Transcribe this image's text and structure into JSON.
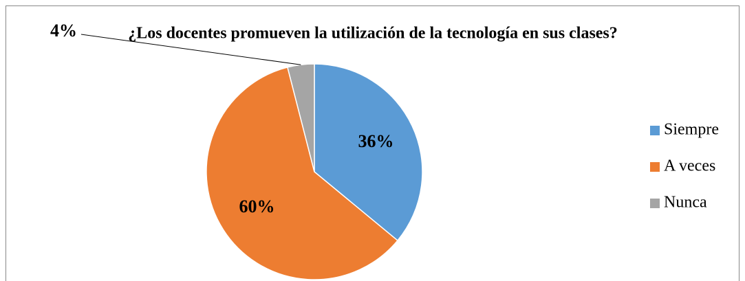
{
  "chart_data": {
    "type": "pie",
    "title": "¿Los docentes promueven la utilización de la tecnología en sus clases?",
    "categories": [
      "Siempre",
      "A veces",
      "Nunca"
    ],
    "values": [
      36,
      60,
      4
    ],
    "value_labels": [
      "36%",
      "60%",
      "4%"
    ],
    "colors": [
      "#5b9bd5",
      "#ed7d31",
      "#a5a5a5"
    ],
    "legend": "right"
  }
}
